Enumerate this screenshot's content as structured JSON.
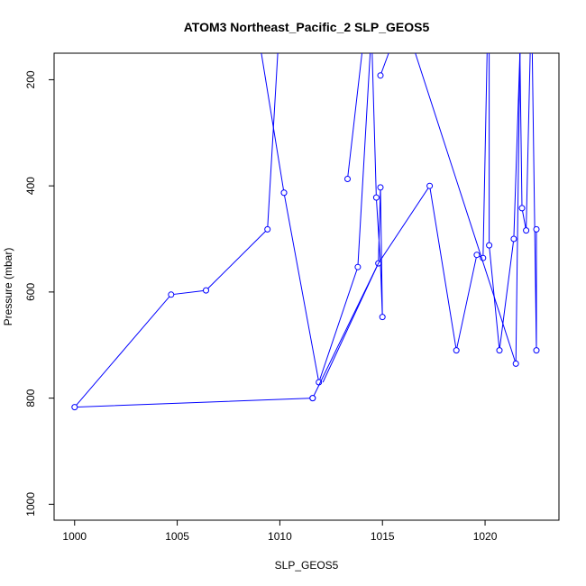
{
  "chart_data": {
    "type": "line",
    "title": "ATOM3 Northeast_Pacific_2 SLP_GEOS5",
    "xlabel": "SLP_GEOS5",
    "ylabel": "Pressure (mbar)",
    "xlim": [
      999,
      1023.6
    ],
    "ylim": [
      1030,
      150
    ],
    "y_reversed": true,
    "x_ticks": [
      1000,
      1005,
      1010,
      1015,
      1020
    ],
    "y_ticks": [
      200,
      400,
      600,
      800,
      1000
    ],
    "x_tick_labels": [
      "1000",
      "1005",
      "1010",
      "1015",
      "1020"
    ],
    "y_tick_labels": [
      "200",
      "400",
      "600",
      "800",
      "1000"
    ],
    "grid": false,
    "series": [
      {
        "color": "#0000ff",
        "marker": "open-circle",
        "segments": [
          {
            "x": [
              1009.1,
              1010.2
            ],
            "y": [
              150,
              413
            ],
            "markers": [
              false,
              true
            ]
          },
          {
            "x": [
              1010.2,
              1011.9,
              1013.8,
              1014.4
            ],
            "y": [
              413,
              770,
              553,
              150
            ],
            "markers": [
              true,
              true,
              true,
              false
            ]
          },
          {
            "x": [
              1013.3,
              1014.0
            ],
            "y": [
              387,
              150
            ],
            "markers": [
              true,
              false
            ]
          },
          {
            "x": [
              1014.5,
              1014.7,
              1014.9,
              1015.0,
              1014.9,
              1014.8,
              1011.6
            ],
            "y": [
              150,
              422,
              546,
              647,
              403,
              546,
              800
            ],
            "markers": [
              false,
              true,
              false,
              true,
              true,
              true,
              true
            ]
          },
          {
            "x": [
              1011.6,
              1000.0,
              1004.7,
              1006.4,
              1009.4,
              1009.9
            ],
            "y": [
              800,
              817,
              605,
              597,
              482,
              150
            ],
            "markers": [
              true,
              true,
              true,
              true,
              true,
              false
            ]
          },
          {
            "x": [
              1014.9,
              1015.3
            ],
            "y": [
              192,
              150
            ],
            "markers": [
              true,
              false
            ]
          },
          {
            "x": [
              1012.1,
              1014.8,
              1017.3,
              1018.6,
              1019.6,
              1019.9,
              1020.1
            ],
            "y": [
              770,
              546,
              400,
              710,
              530,
              536,
              150
            ],
            "markers": [
              false,
              false,
              true,
              true,
              true,
              true,
              false
            ]
          },
          {
            "x": [
              1016.6,
              1021.5,
              1021.7
            ],
            "y": [
              150,
              735,
              150
            ],
            "markers": [
              false,
              true,
              false
            ]
          },
          {
            "x": [
              1020.2,
              1020.2,
              1020.7,
              1021.4,
              1021.7
            ],
            "y": [
              150,
              512,
              710,
              500,
              150
            ],
            "markers": [
              false,
              true,
              true,
              true,
              false
            ]
          },
          {
            "x": [
              1021.7,
              1021.8,
              1022.0,
              1022.2
            ],
            "y": [
              150,
              442,
              484,
              150
            ],
            "markers": [
              false,
              true,
              true,
              false
            ]
          },
          {
            "x": [
              1022.3,
              1022.5,
              1022.5
            ],
            "y": [
              150,
              710,
              482
            ],
            "markers": [
              false,
              true,
              true
            ]
          }
        ]
      }
    ]
  }
}
